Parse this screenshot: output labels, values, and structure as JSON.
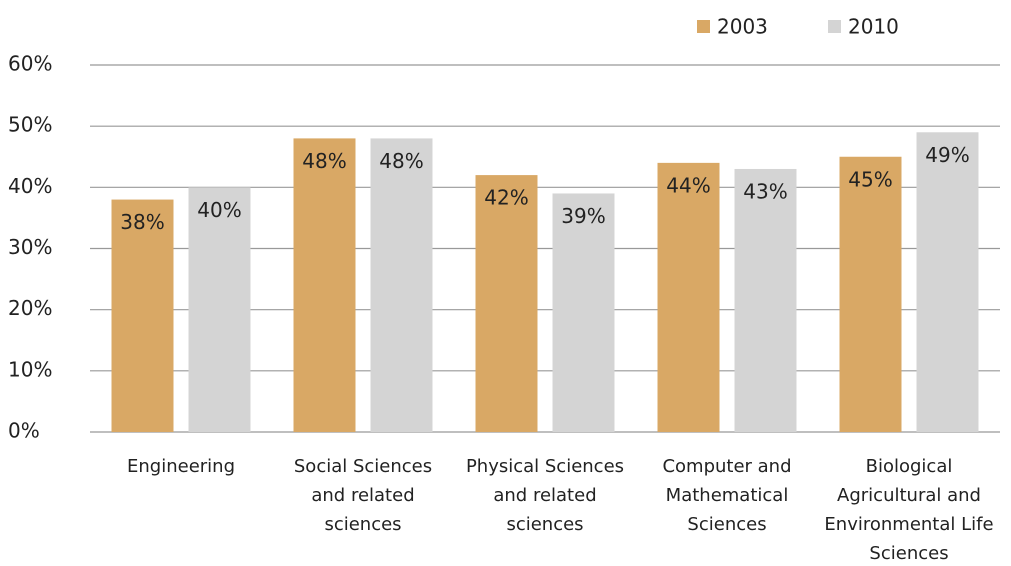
{
  "chart_data": {
    "type": "bar",
    "categories": [
      "Engineering",
      "Social Sciences and related sciences",
      "Physical Sciences and related sciences",
      "Computer and Mathematical Sciences",
      "Biological Agricultural and Environmental Life Sciences"
    ],
    "series": [
      {
        "name": "2003",
        "color": "#d9a865",
        "values": [
          38,
          48,
          42,
          44,
          45
        ],
        "value_labels": [
          "38%",
          "48%",
          "42%",
          "44%",
          "45%"
        ]
      },
      {
        "name": "2010",
        "color": "#d4d4d4",
        "values": [
          40,
          48,
          39,
          43,
          49
        ],
        "value_labels": [
          "40%",
          "48%",
          "39%",
          "43%",
          "49%"
        ]
      }
    ],
    "ylim": [
      0,
      60
    ],
    "yticks": [
      {
        "value": 0,
        "label": "0%"
      },
      {
        "value": 10,
        "label": "10%"
      },
      {
        "value": 20,
        "label": "20%"
      },
      {
        "value": 30,
        "label": "30%"
      },
      {
        "value": 40,
        "label": "40%"
      },
      {
        "value": 50,
        "label": "50%"
      },
      {
        "value": 60,
        "label": "60%"
      }
    ],
    "grid": true,
    "legend": "top-right"
  }
}
